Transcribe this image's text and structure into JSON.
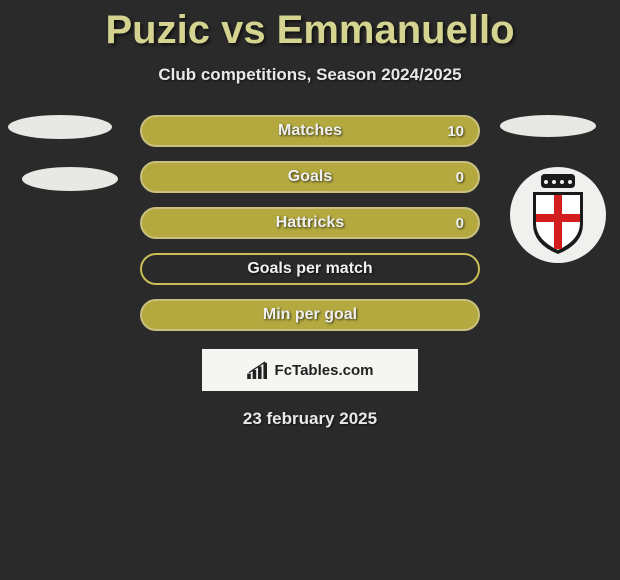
{
  "title": "Puzic vs Emmanuello",
  "subtitle": "Club competitions, Season 2024/2025",
  "stats": [
    {
      "label": "Matches",
      "value": "10",
      "fill": "#b3a93f",
      "border": "#c9c080"
    },
    {
      "label": "Goals",
      "value": "0",
      "fill": "#b3a93f",
      "border": "#c9c080"
    },
    {
      "label": "Hattricks",
      "value": "0",
      "fill": "#b3a93f",
      "border": "#c9c080"
    },
    {
      "label": "Goals per match",
      "value": "",
      "fill": "#2a2a2a",
      "border": "#c9bf56"
    },
    {
      "label": "Min per goal",
      "value": "",
      "fill": "#b3a93f",
      "border": "#c9c080"
    }
  ],
  "left_badges": [
    {
      "class": "ellipse-left-1"
    },
    {
      "class": "ellipse-left-2"
    }
  ],
  "right_badges": [
    {
      "class": "ellipse-right-1"
    }
  ],
  "club_badge": {
    "crown_fill": "#1a1a1a",
    "shield_fill": "#ffffff",
    "cross_fill": "#d21e1e"
  },
  "attribution": {
    "text": "FcTables.com"
  },
  "date": "23 february 2025",
  "colors": {
    "background": "#2a2a2a",
    "title": "#d4d490"
  }
}
